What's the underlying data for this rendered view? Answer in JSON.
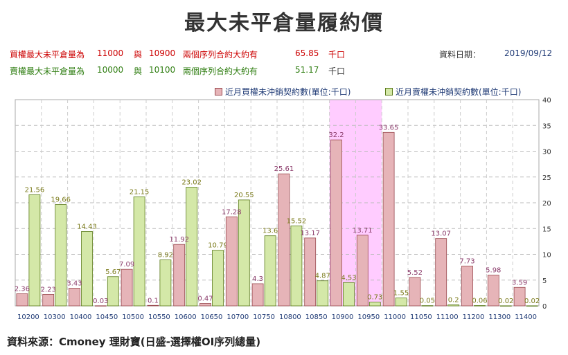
{
  "title": "最大未平倉量履約價",
  "info": {
    "call_line": {
      "label": "買權最大未平倉量為",
      "v1": "11000",
      "conj": "與",
      "v2": "10900",
      "desc": "兩個序列合約大約有",
      "amount": "65.85",
      "unit": "千口"
    },
    "put_line": {
      "label": "賣權最大未平倉量為",
      "v1": "10000",
      "conj": "與",
      "v2": "10100",
      "desc": "兩個序列合約大約有",
      "amount": "51.17",
      "unit": "千口"
    },
    "date_label": "資料日期：",
    "date_value": "2019/09/12"
  },
  "legend": {
    "call": "近月買權未沖銷契約數(單位:千口)",
    "put": "近月賣權未沖銷契約數(單位:千口)"
  },
  "colors": {
    "call_fill": "#e6b4b8",
    "call_stroke": "#9a4a50",
    "put_fill": "#d4e8a8",
    "put_stroke": "#5a7a1a",
    "call_label": "#8a3a6a",
    "put_label": "#7a7a1a",
    "highlight": "#ffccff",
    "axis_text": "#1f3a75"
  },
  "source": "資料來源：Cmoney 理財寶(日盛-選擇權OI序列總量)",
  "chart_data": {
    "type": "bar",
    "categories": [
      "10200",
      "10300",
      "10400",
      "10450",
      "10500",
      "10550",
      "10600",
      "10650",
      "10700",
      "10750",
      "10800",
      "10850",
      "10900",
      "10950",
      "11000",
      "11050",
      "11100",
      "11200",
      "11300",
      "11400"
    ],
    "series": [
      {
        "name": "近月買權未沖銷契約數(單位:千口)",
        "values": [
          2.36,
          2.23,
          3.43,
          0.03,
          7.09,
          0.1,
          11.92,
          0.47,
          17.28,
          4.3,
          25.61,
          13.17,
          32.2,
          13.71,
          33.65,
          5.52,
          13.07,
          7.73,
          5.98,
          3.59
        ]
      },
      {
        "name": "近月賣權未沖銷契約數(單位:千口)",
        "values": [
          21.56,
          19.66,
          14.43,
          5.67,
          21.15,
          8.92,
          23.02,
          10.79,
          20.55,
          13.6,
          15.52,
          4.87,
          4.53,
          0.73,
          1.55,
          0.05,
          0.2,
          0.06,
          0.02,
          0.02
        ]
      }
    ],
    "ylim": [
      0,
      40
    ],
    "yticks": [
      0,
      5,
      10,
      15,
      20,
      25,
      30,
      35,
      40
    ],
    "highlight_categories": [
      "10900",
      "10950"
    ],
    "grid": true,
    "legend_position": "top-right"
  }
}
